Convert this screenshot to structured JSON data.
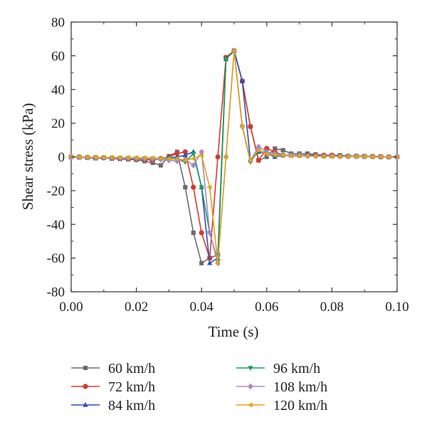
{
  "chart_data": {
    "type": "line",
    "xlabel": "Time (s)",
    "ylabel": "Shear stress (kPa)",
    "xlim": [
      0,
      0.1
    ],
    "ylim": [
      -80,
      80
    ],
    "xticks": [
      "0.00",
      "0.02",
      "0.04",
      "0.06",
      "0.08",
      "0.10"
    ],
    "yticks": [
      "-80",
      "-60",
      "-40",
      "-20",
      "0",
      "20",
      "40",
      "60",
      "80"
    ],
    "grid": false,
    "legend_position": "bottom",
    "series": [
      {
        "name": "60 km/h",
        "color": "#6b6b6b",
        "marker": "square",
        "points": [
          [
            0,
            0
          ],
          [
            0.0025,
            -0.3
          ],
          [
            0.005,
            -0.5
          ],
          [
            0.0075,
            -0.8
          ],
          [
            0.01,
            -0.6
          ],
          [
            0.0125,
            -1
          ],
          [
            0.015,
            -1.2
          ],
          [
            0.0175,
            -1.5
          ],
          [
            0.02,
            -1.8
          ],
          [
            0.0225,
            -2.5
          ],
          [
            0.025,
            -3.5
          ],
          [
            0.0275,
            -5
          ],
          [
            0.03,
            0.5
          ],
          [
            0.0325,
            3
          ],
          [
            0.035,
            -18
          ],
          [
            0.0375,
            -45
          ],
          [
            0.04,
            -63
          ],
          [
            0.0425,
            -60
          ],
          [
            0.045,
            -58
          ],
          [
            0.0475,
            59
          ],
          [
            0.05,
            63
          ],
          [
            0.0525,
            45
          ],
          [
            0.055,
            18
          ],
          [
            0.0575,
            -2
          ],
          [
            0.06,
            0
          ],
          [
            0.0625,
            5
          ],
          [
            0.065,
            4
          ],
          [
            0.0675,
            2
          ],
          [
            0.07,
            2
          ],
          [
            0.0725,
            2
          ],
          [
            0.075,
            1.5
          ],
          [
            0.0775,
            1
          ],
          [
            0.08,
            1
          ],
          [
            0.0825,
            1
          ],
          [
            0.085,
            0.5
          ],
          [
            0.0875,
            0.5
          ],
          [
            0.09,
            0.5
          ],
          [
            0.0925,
            0.3
          ],
          [
            0.095,
            0.3
          ],
          [
            0.0975,
            0
          ],
          [
            0.1,
            0
          ]
        ]
      },
      {
        "name": "72 km/h",
        "color": "#d63a2b",
        "marker": "circle",
        "points": [
          [
            0,
            0
          ],
          [
            0.0025,
            0
          ],
          [
            0.005,
            -0.3
          ],
          [
            0.0075,
            -0.5
          ],
          [
            0.01,
            -0.5
          ],
          [
            0.0125,
            -0.8
          ],
          [
            0.015,
            -1
          ],
          [
            0.0175,
            -1
          ],
          [
            0.02,
            -1.2
          ],
          [
            0.0225,
            -1.5
          ],
          [
            0.025,
            -2
          ],
          [
            0.0275,
            -1
          ],
          [
            0.03,
            0
          ],
          [
            0.0325,
            2
          ],
          [
            0.035,
            3
          ],
          [
            0.0375,
            -18
          ],
          [
            0.04,
            -45
          ],
          [
            0.0425,
            -60
          ],
          [
            0.045,
            0
          ],
          [
            0.0475,
            59
          ],
          [
            0.05,
            63
          ],
          [
            0.0525,
            45
          ],
          [
            0.055,
            18
          ],
          [
            0.0575,
            -2
          ],
          [
            0.06,
            5
          ],
          [
            0.0625,
            3
          ],
          [
            0.065,
            1
          ],
          [
            0.0675,
            1
          ],
          [
            0.07,
            1
          ],
          [
            0.0725,
            1
          ],
          [
            0.075,
            1
          ],
          [
            0.0775,
            1
          ],
          [
            0.08,
            1
          ],
          [
            0.0825,
            0.5
          ],
          [
            0.085,
            0.5
          ],
          [
            0.0875,
            0.5
          ],
          [
            0.09,
            0.3
          ],
          [
            0.0925,
            0.3
          ],
          [
            0.095,
            0
          ],
          [
            0.0975,
            0
          ],
          [
            0.1,
            0
          ]
        ]
      },
      {
        "name": "84 km/h",
        "color": "#2d4fb8",
        "marker": "triangle-up",
        "points": [
          [
            0,
            0
          ],
          [
            0.0025,
            0
          ],
          [
            0.005,
            -0.2
          ],
          [
            0.0075,
            -0.4
          ],
          [
            0.01,
            -0.5
          ],
          [
            0.0125,
            -0.6
          ],
          [
            0.015,
            -0.8
          ],
          [
            0.0175,
            -0.8
          ],
          [
            0.02,
            -1
          ],
          [
            0.0225,
            -1
          ],
          [
            0.025,
            -1.2
          ],
          [
            0.0275,
            -1
          ],
          [
            0.03,
            -0.5
          ],
          [
            0.0325,
            0
          ],
          [
            0.035,
            1
          ],
          [
            0.0375,
            3
          ],
          [
            0.04,
            -18
          ],
          [
            0.0425,
            -63
          ],
          [
            0.045,
            -60
          ],
          [
            0.0475,
            58
          ],
          [
            0.05,
            63
          ],
          [
            0.0525,
            45
          ],
          [
            0.055,
            -2
          ],
          [
            0.0575,
            3
          ],
          [
            0.06,
            2
          ],
          [
            0.0625,
            0
          ],
          [
            0.065,
            1
          ],
          [
            0.0675,
            1
          ],
          [
            0.07,
            1
          ],
          [
            0.0725,
            1
          ],
          [
            0.075,
            1
          ],
          [
            0.0775,
            0.5
          ],
          [
            0.08,
            0.5
          ],
          [
            0.0825,
            0.5
          ],
          [
            0.085,
            0.5
          ],
          [
            0.0875,
            0.3
          ],
          [
            0.09,
            0.3
          ],
          [
            0.0925,
            0.3
          ],
          [
            0.095,
            0
          ],
          [
            0.0975,
            0
          ],
          [
            0.1,
            0
          ]
        ]
      },
      {
        "name": "96 km/h",
        "color": "#1a9e5a",
        "marker": "triangle-down",
        "points": [
          [
            0,
            0
          ],
          [
            0.0025,
            0
          ],
          [
            0.005,
            -0.2
          ],
          [
            0.0075,
            -0.3
          ],
          [
            0.01,
            -0.4
          ],
          [
            0.0125,
            -0.5
          ],
          [
            0.015,
            -0.6
          ],
          [
            0.0175,
            -0.6
          ],
          [
            0.02,
            -0.8
          ],
          [
            0.0225,
            -0.8
          ],
          [
            0.025,
            -1
          ],
          [
            0.0275,
            -1
          ],
          [
            0.03,
            -1
          ],
          [
            0.0325,
            -1.5
          ],
          [
            0.035,
            -3
          ],
          [
            0.0375,
            2
          ],
          [
            0.04,
            -18
          ],
          [
            0.0425,
            -45
          ],
          [
            0.045,
            -62
          ],
          [
            0.0475,
            58
          ],
          [
            0.05,
            63
          ],
          [
            0.0525,
            18
          ],
          [
            0.055,
            -3
          ],
          [
            0.0575,
            4
          ],
          [
            0.06,
            2
          ],
          [
            0.0625,
            1
          ],
          [
            0.065,
            1
          ],
          [
            0.0675,
            1
          ],
          [
            0.07,
            1
          ],
          [
            0.0725,
            0.5
          ],
          [
            0.075,
            0.5
          ],
          [
            0.0775,
            0.5
          ],
          [
            0.08,
            0.5
          ],
          [
            0.0825,
            0.3
          ],
          [
            0.085,
            0.3
          ],
          [
            0.0875,
            0.3
          ],
          [
            0.09,
            0.2
          ],
          [
            0.0925,
            0.2
          ],
          [
            0.095,
            0
          ],
          [
            0.0975,
            0
          ],
          [
            0.1,
            0
          ]
        ]
      },
      {
        "name": "108 km/h",
        "color": "#a887c9",
        "marker": "diamond",
        "points": [
          [
            0,
            0
          ],
          [
            0.0025,
            -0.2
          ],
          [
            0.005,
            -0.3
          ],
          [
            0.0075,
            -0.4
          ],
          [
            0.01,
            -0.5
          ],
          [
            0.0125,
            -0.6
          ],
          [
            0.015,
            -0.7
          ],
          [
            0.0175,
            -0.8
          ],
          [
            0.02,
            -0.9
          ],
          [
            0.0225,
            -1
          ],
          [
            0.025,
            -1.2
          ],
          [
            0.0275,
            -1.5
          ],
          [
            0.03,
            -2
          ],
          [
            0.0325,
            -2.5
          ],
          [
            0.035,
            -1.5
          ],
          [
            0.0375,
            -5
          ],
          [
            0.04,
            3
          ],
          [
            0.0425,
            -45
          ],
          [
            0.045,
            -63
          ],
          [
            0.0475,
            0
          ],
          [
            0.05,
            63
          ],
          [
            0.0525,
            18
          ],
          [
            0.055,
            -2
          ],
          [
            0.0575,
            6
          ],
          [
            0.06,
            3
          ],
          [
            0.0625,
            2
          ],
          [
            0.065,
            1
          ],
          [
            0.0675,
            1
          ],
          [
            0.07,
            1
          ],
          [
            0.0725,
            0.5
          ],
          [
            0.075,
            0.5
          ],
          [
            0.0775,
            0.5
          ],
          [
            0.08,
            0.5
          ],
          [
            0.0825,
            0.3
          ],
          [
            0.085,
            0.3
          ],
          [
            0.0875,
            0.3
          ],
          [
            0.09,
            0.2
          ],
          [
            0.0925,
            0.2
          ],
          [
            0.095,
            0
          ],
          [
            0.0975,
            0
          ],
          [
            0.1,
            0
          ]
        ]
      },
      {
        "name": "120 km/h",
        "color": "#e0a21a",
        "marker": "triangle-left",
        "points": [
          [
            0,
            0
          ],
          [
            0.0025,
            0
          ],
          [
            0.005,
            -0.1
          ],
          [
            0.0075,
            -0.2
          ],
          [
            0.01,
            -0.3
          ],
          [
            0.0125,
            -0.3
          ],
          [
            0.015,
            -0.4
          ],
          [
            0.0175,
            -0.4
          ],
          [
            0.02,
            -0.5
          ],
          [
            0.0225,
            -0.5
          ],
          [
            0.025,
            -0.6
          ],
          [
            0.0275,
            -0.8
          ],
          [
            0.03,
            -1
          ],
          [
            0.0325,
            -1
          ],
          [
            0.035,
            -2
          ],
          [
            0.0375,
            -1
          ],
          [
            0.04,
            1
          ],
          [
            0.0425,
            -18
          ],
          [
            0.045,
            -63
          ],
          [
            0.0475,
            0
          ],
          [
            0.05,
            63
          ],
          [
            0.0525,
            18
          ],
          [
            0.055,
            -2
          ],
          [
            0.0575,
            4
          ],
          [
            0.06,
            1.5
          ],
          [
            0.0625,
            1
          ],
          [
            0.065,
            1
          ],
          [
            0.0675,
            0.5
          ],
          [
            0.07,
            0.5
          ],
          [
            0.0725,
            0.5
          ],
          [
            0.075,
            0.5
          ],
          [
            0.0775,
            0.3
          ],
          [
            0.08,
            0.3
          ],
          [
            0.0825,
            0.3
          ],
          [
            0.085,
            0.3
          ],
          [
            0.0875,
            0.2
          ],
          [
            0.09,
            0.2
          ],
          [
            0.0925,
            0
          ],
          [
            0.095,
            0
          ],
          [
            0.0975,
            0
          ],
          [
            0.1,
            0
          ]
        ]
      }
    ]
  }
}
